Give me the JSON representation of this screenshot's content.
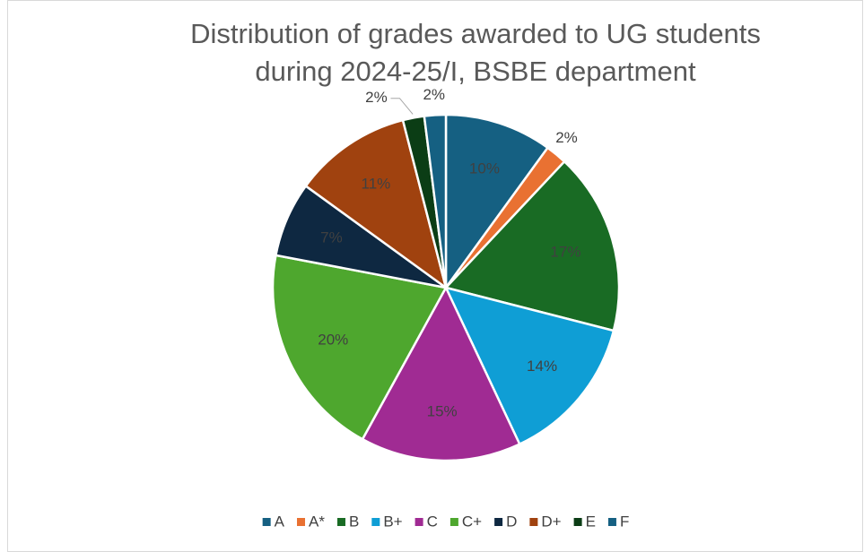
{
  "chart_data": {
    "type": "pie",
    "title": [
      "Distribution of grades awarded to UG students",
      "during 2024-25/I, BSBE department"
    ],
    "categories": [
      "A",
      "A*",
      "B",
      "B+",
      "C",
      "C+",
      "D",
      "D+",
      "E",
      "F"
    ],
    "values": [
      10,
      2,
      17,
      14,
      15,
      20,
      7,
      11,
      2,
      2
    ],
    "value_labels": [
      "10%",
      "2%",
      "17%",
      "14%",
      "15%",
      "20%",
      "7%",
      "11%",
      "2%",
      "2%"
    ],
    "colors": [
      "#156082",
      "#e97132",
      "#196b24",
      "#0f9ed5",
      "#a02b93",
      "#4ea72e",
      "#0e2841",
      "#a0420f",
      "#0b3d15",
      "#156082"
    ],
    "legend": "bottom"
  }
}
